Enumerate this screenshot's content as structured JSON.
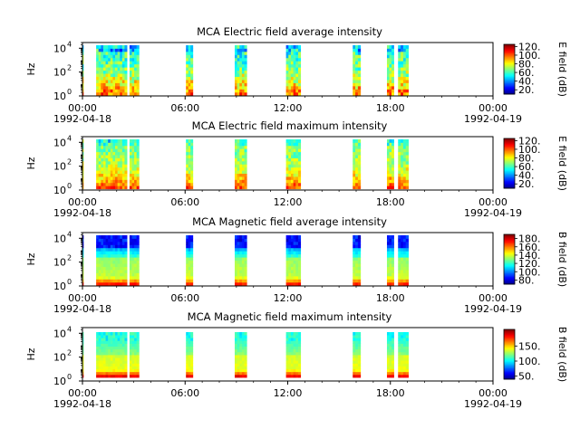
{
  "chart_data": [
    {
      "type": "heatmap",
      "title": "MCA  Electric field average intensity",
      "ylabel": "Hz",
      "yscale": "log",
      "ylim": [
        1,
        30000
      ],
      "yticks": [
        "10^0",
        "10^2",
        "10^4"
      ],
      "xlim": [
        "1992-04-18 00:00",
        "1992-04-19 00:00"
      ],
      "xticks": [
        "00:00",
        "06:00",
        "12:00",
        "18:00",
        "00:00"
      ],
      "xdates": {
        "start": "1992-04-18",
        "end": "1992-04-19"
      },
      "colorbar": {
        "label": "E field (dB)",
        "range": [
          10,
          125
        ],
        "ticks": [
          20,
          40,
          60,
          80,
          100,
          120
        ],
        "tick_labels": [
          "20.",
          "40.",
          "60.",
          "80.",
          "100.",
          "120."
        ]
      },
      "colormap": "jet",
      "scheme": "efield-avg",
      "segments": [
        [
          0.0,
          0.05
        ],
        [
          0.8,
          2.6
        ],
        [
          2.75,
          3.3
        ],
        [
          6.05,
          6.45
        ],
        [
          8.9,
          9.6
        ],
        [
          11.9,
          12.75
        ],
        [
          15.8,
          16.25
        ],
        [
          17.8,
          18.2
        ],
        [
          18.45,
          19.05
        ]
      ]
    },
    {
      "type": "heatmap",
      "title": "MCA  Electric field maximum intensity",
      "ylabel": "Hz",
      "yscale": "log",
      "ylim": [
        1,
        30000
      ],
      "yticks": [
        "10^0",
        "10^2",
        "10^4"
      ],
      "xlim": [
        "1992-04-18 00:00",
        "1992-04-19 00:00"
      ],
      "xticks": [
        "00:00",
        "06:00",
        "12:00",
        "18:00",
        "00:00"
      ],
      "xdates": {
        "start": "1992-04-18",
        "end": "1992-04-19"
      },
      "colorbar": {
        "label": "E field (dB)",
        "range": [
          10,
          125
        ],
        "ticks": [
          20,
          40,
          60,
          80,
          100,
          120
        ],
        "tick_labels": [
          "20.",
          "40.",
          "60.",
          "80.",
          "100.",
          "120."
        ]
      },
      "colormap": "jet",
      "scheme": "efield-max",
      "segments": [
        [
          0.0,
          0.05
        ],
        [
          0.8,
          2.6
        ],
        [
          2.75,
          3.3
        ],
        [
          6.05,
          6.45
        ],
        [
          8.9,
          9.6
        ],
        [
          11.9,
          12.75
        ],
        [
          15.8,
          16.25
        ],
        [
          17.8,
          18.2
        ],
        [
          18.45,
          19.05
        ]
      ]
    },
    {
      "type": "heatmap",
      "title": "MCA  Magnetic field average intensity",
      "ylabel": "Hz",
      "yscale": "log",
      "ylim": [
        1,
        30000
      ],
      "yticks": [
        "10^0",
        "10^2",
        "10^4"
      ],
      "xlim": [
        "1992-04-18 00:00",
        "1992-04-19 00:00"
      ],
      "xticks": [
        "00:00",
        "06:00",
        "12:00",
        "18:00",
        "00:00"
      ],
      "xdates": {
        "start": "1992-04-18",
        "end": "1992-04-19"
      },
      "colorbar": {
        "label": "B field (dB)",
        "range": [
          70,
          190
        ],
        "ticks": [
          80,
          100,
          120,
          140,
          160,
          180
        ],
        "tick_labels": [
          "80.",
          "100.",
          "120.",
          "140.",
          "160.",
          "180."
        ]
      },
      "colormap": "jet",
      "scheme": "bfield-avg",
      "segments": [
        [
          0.0,
          0.05
        ],
        [
          0.8,
          2.6
        ],
        [
          2.75,
          3.3
        ],
        [
          6.05,
          6.45
        ],
        [
          8.9,
          9.6
        ],
        [
          11.9,
          12.75
        ],
        [
          15.8,
          16.25
        ],
        [
          17.8,
          18.2
        ],
        [
          18.45,
          19.05
        ]
      ]
    },
    {
      "type": "heatmap",
      "title": "MCA  Magnetic field maximum intensity",
      "ylabel": "Hz",
      "yscale": "log",
      "ylim": [
        1,
        30000
      ],
      "yticks": [
        "10^0",
        "10^2",
        "10^4"
      ],
      "xlim": [
        "1992-04-18 00:00",
        "1992-04-19 00:00"
      ],
      "xticks": [
        "00:00",
        "06:00",
        "12:00",
        "18:00",
        "00:00"
      ],
      "xdates": {
        "start": "1992-04-18",
        "end": "1992-04-19"
      },
      "colorbar": {
        "label": "B field (dB)",
        "range": [
          40,
          205
        ],
        "ticks": [
          50,
          100,
          150
        ],
        "tick_labels": [
          "50.",
          "100.",
          "150."
        ]
      },
      "colormap": "jet",
      "scheme": "bfield-max",
      "segments": [
        [
          0.0,
          0.05
        ],
        [
          0.8,
          2.6
        ],
        [
          2.75,
          3.3
        ],
        [
          6.05,
          6.45
        ],
        [
          8.9,
          9.6
        ],
        [
          11.9,
          12.75
        ],
        [
          15.8,
          16.25
        ],
        [
          17.8,
          18.2
        ],
        [
          18.45,
          19.05
        ]
      ]
    }
  ]
}
